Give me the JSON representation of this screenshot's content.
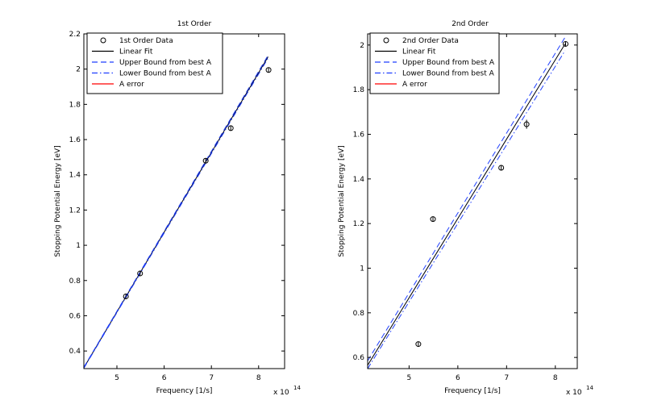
{
  "chart_data": [
    {
      "type": "scatter",
      "title": "1st Order",
      "xlabel": "Frequency [1/s]",
      "ylabel": "Stopping Potential Energy [eV]",
      "x_multiplier": "x 10",
      "x_multiplier_exp": "14",
      "xlim": [
        4.3,
        8.55
      ],
      "ylim": [
        0.3,
        2.2
      ],
      "xticks": [
        5,
        6,
        7,
        8
      ],
      "xtick_labels": [
        "5",
        "6",
        "7",
        "8"
      ],
      "yticks": [
        0.4,
        0.6,
        0.8,
        1.0,
        1.2,
        1.4,
        1.6,
        1.8,
        2.0,
        2.2
      ],
      "ytick_labels": [
        "0.4",
        "0.6",
        "0.8",
        "1",
        "1.2",
        "1.4",
        "1.6",
        "1.8",
        "2",
        "2.2"
      ],
      "legend": [
        "1st Order Data",
        "Linear Fit",
        "Upper Bound from best A",
        "Lower Bound from best A",
        "A error"
      ],
      "data_points": [
        {
          "x": 5.19,
          "y": 0.71,
          "err": 0.01
        },
        {
          "x": 5.49,
          "y": 0.84,
          "err": 0.01
        },
        {
          "x": 6.88,
          "y": 1.48,
          "err": 0.01
        },
        {
          "x": 7.41,
          "y": 1.665,
          "err": 0.01
        },
        {
          "x": 8.21,
          "y": 1.995,
          "err": 0.01
        }
      ],
      "linear_fit": {
        "x": [
          4.3,
          8.2
        ],
        "y": [
          0.305,
          2.07
        ]
      },
      "upper_bound": {
        "x": [
          4.3,
          8.2
        ],
        "y": [
          0.308,
          2.078
        ]
      },
      "lower_bound": {
        "x": [
          4.3,
          8.2
        ],
        "y": [
          0.302,
          2.062
        ]
      }
    },
    {
      "type": "scatter",
      "title": "2nd Order",
      "xlabel": "Frequency [1/s]",
      "ylabel": "Stopping Potential Energy [eV]",
      "x_multiplier": "x 10",
      "x_multiplier_exp": "14",
      "xlim": [
        4.15,
        8.45
      ],
      "ylim": [
        0.55,
        2.05
      ],
      "xticks": [
        5,
        6,
        7,
        8
      ],
      "xtick_labels": [
        "5",
        "6",
        "7",
        "8"
      ],
      "yticks": [
        0.6,
        0.8,
        1.0,
        1.2,
        1.4,
        1.6,
        1.8,
        2.0
      ],
      "ytick_labels": [
        "0.6",
        "0.8",
        "1",
        "1.2",
        "1.4",
        "1.6",
        "1.8",
        "2"
      ],
      "legend": [
        "2nd Order Data",
        "Linear Fit",
        "Upper Bound from best A",
        "Lower Bound from best A",
        "A error"
      ],
      "data_points": [
        {
          "x": 5.19,
          "y": 0.66,
          "err": 0.008
        },
        {
          "x": 5.49,
          "y": 1.22,
          "err": 0.01
        },
        {
          "x": 6.89,
          "y": 1.45,
          "err": 0.012
        },
        {
          "x": 7.41,
          "y": 1.645,
          "err": 0.02
        },
        {
          "x": 8.21,
          "y": 2.005,
          "err": 0.01
        }
      ],
      "linear_fit": {
        "x": [
          4.15,
          8.2
        ],
        "y": [
          0.565,
          2.005
        ]
      },
      "upper_bound": {
        "x": [
          4.15,
          8.2
        ],
        "y": [
          0.585,
          2.035
        ]
      },
      "lower_bound": {
        "x": [
          4.15,
          8.2
        ],
        "y": [
          0.55,
          1.975
        ]
      }
    }
  ],
  "colors": {
    "axes": "#000000",
    "data_marker": "#000000",
    "linear_fit": "#000000",
    "upper_bound": "#1f3fff",
    "lower_bound": "#1f3fff",
    "a_error": "#ff0000",
    "background": "#ffffff"
  }
}
